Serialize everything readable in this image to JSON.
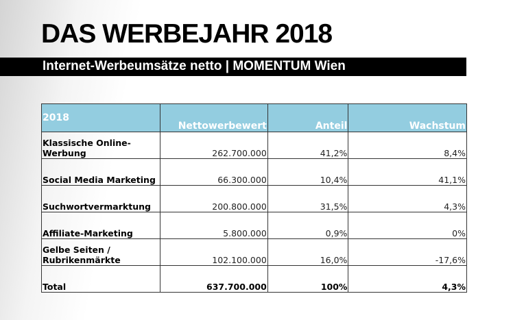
{
  "title": "DAS WERBEJAHR 2018",
  "subtitle": "Internet-Werbeumsätze netto | MOMENTUM Wien",
  "table": {
    "headers": [
      "2018",
      "Nettowerbewert",
      "Anteil",
      "Wachstum"
    ],
    "rows": [
      {
        "label": "Klassische Online-Werbung",
        "value": "262.700.000",
        "share": "41,2%",
        "growth": "8,4%"
      },
      {
        "label": "Social Media Marketing",
        "value": "66.300.000",
        "share": "10,4%",
        "growth": "41,1%"
      },
      {
        "label": "Suchwortvermarktung",
        "value": "200.800.000",
        "share": "31,5%",
        "growth": "4,3%"
      },
      {
        "label": "Affiliate-Marketing",
        "value": "5.800.000",
        "share": "0,9%",
        "growth": "0%"
      },
      {
        "label": "Gelbe Seiten / Rubrikenmärkte",
        "value": "102.100.000",
        "share": "16,0%",
        "growth": "-17,6%"
      }
    ],
    "total": {
      "label": "Total",
      "value": "637.700.000",
      "share": "100%",
      "growth": "4,3%"
    }
  }
}
